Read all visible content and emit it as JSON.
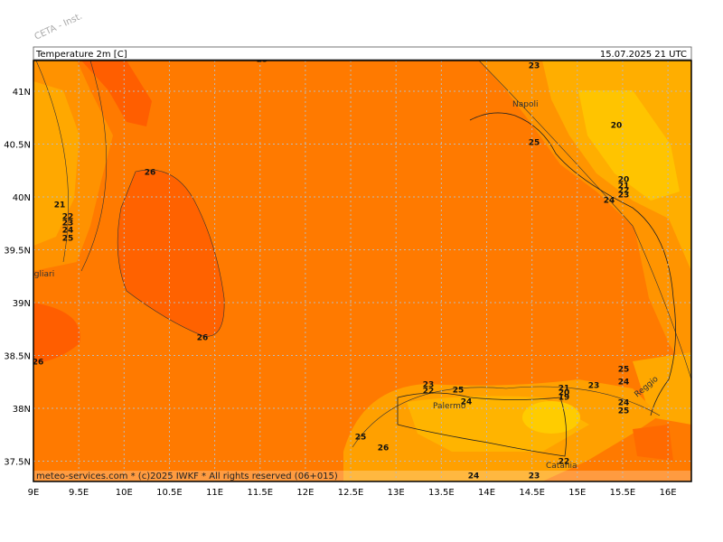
{
  "header": {
    "title": "Temperature 2m [C]",
    "valid_time": "15.07.2025 21 UTC"
  },
  "watermark": "CETA - Inst.",
  "footer": "meteo-services.com * (c)2025 IWKF * All rights reserved (06+015)",
  "map": {
    "lon_ticks": [
      {
        "value": 9,
        "label": "9E"
      },
      {
        "value": 9.5,
        "label": "9.5E"
      },
      {
        "value": 10,
        "label": "10E"
      },
      {
        "value": 10.5,
        "label": "10.5E"
      },
      {
        "value": 11,
        "label": "11E"
      },
      {
        "value": 11.5,
        "label": "11.5E"
      },
      {
        "value": 12,
        "label": "12E"
      },
      {
        "value": 12.5,
        "label": "12.5E"
      },
      {
        "value": 13,
        "label": "13E"
      },
      {
        "value": 13.5,
        "label": "13.5E"
      },
      {
        "value": 14,
        "label": "14E"
      },
      {
        "value": 14.5,
        "label": "14.5E"
      },
      {
        "value": 15,
        "label": "15E"
      },
      {
        "value": 15.5,
        "label": "15.5E"
      },
      {
        "value": 16,
        "label": "16E"
      }
    ],
    "lat_ticks": [
      {
        "value": 41,
        "label": "41N"
      },
      {
        "value": 40.5,
        "label": "40.5N"
      },
      {
        "value": 40,
        "label": "40N"
      },
      {
        "value": 39.5,
        "label": "39.5N"
      },
      {
        "value": 39,
        "label": "39N"
      },
      {
        "value": 38.5,
        "label": "38.5N"
      },
      {
        "value": 38,
        "label": "38N"
      },
      {
        "value": 37.5,
        "label": "37.5N"
      }
    ],
    "places": [
      "Napoli",
      "Cagliari",
      "Palermo",
      "Catania",
      "Reggio"
    ],
    "contour_labels": [
      23,
      26,
      21,
      22,
      23,
      24,
      25,
      26,
      26,
      23,
      25,
      20,
      20,
      21,
      22,
      23,
      24,
      25,
      24,
      23,
      22,
      25,
      24,
      21,
      20,
      19,
      23,
      24,
      25,
      25,
      26,
      22,
      24,
      23
    ]
  }
}
